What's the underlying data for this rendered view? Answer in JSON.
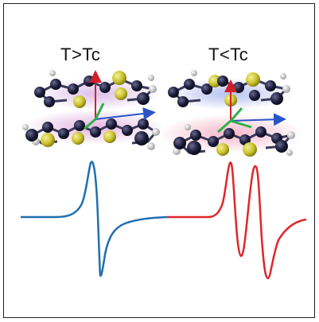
{
  "labels": {
    "left": "T>Tc",
    "right": "T<Tc"
  },
  "colors": {
    "left_curve": "#1f6fb0",
    "right_curve": "#e0262b",
    "carbon": "#1c1c3a",
    "sulfur": "#c9c22a",
    "hydrogen": "#e8e8e8",
    "upper_disc_left": "#c9a0d8",
    "lower_disc_left": "#d59ad6",
    "upper_disc_right": "#9aa8e6",
    "lower_disc_right": "#f0a0b8",
    "arrow_red": "#d0202a",
    "arrow_blue": "#2a55c8",
    "arrow_green": "#2fb04a"
  }
}
